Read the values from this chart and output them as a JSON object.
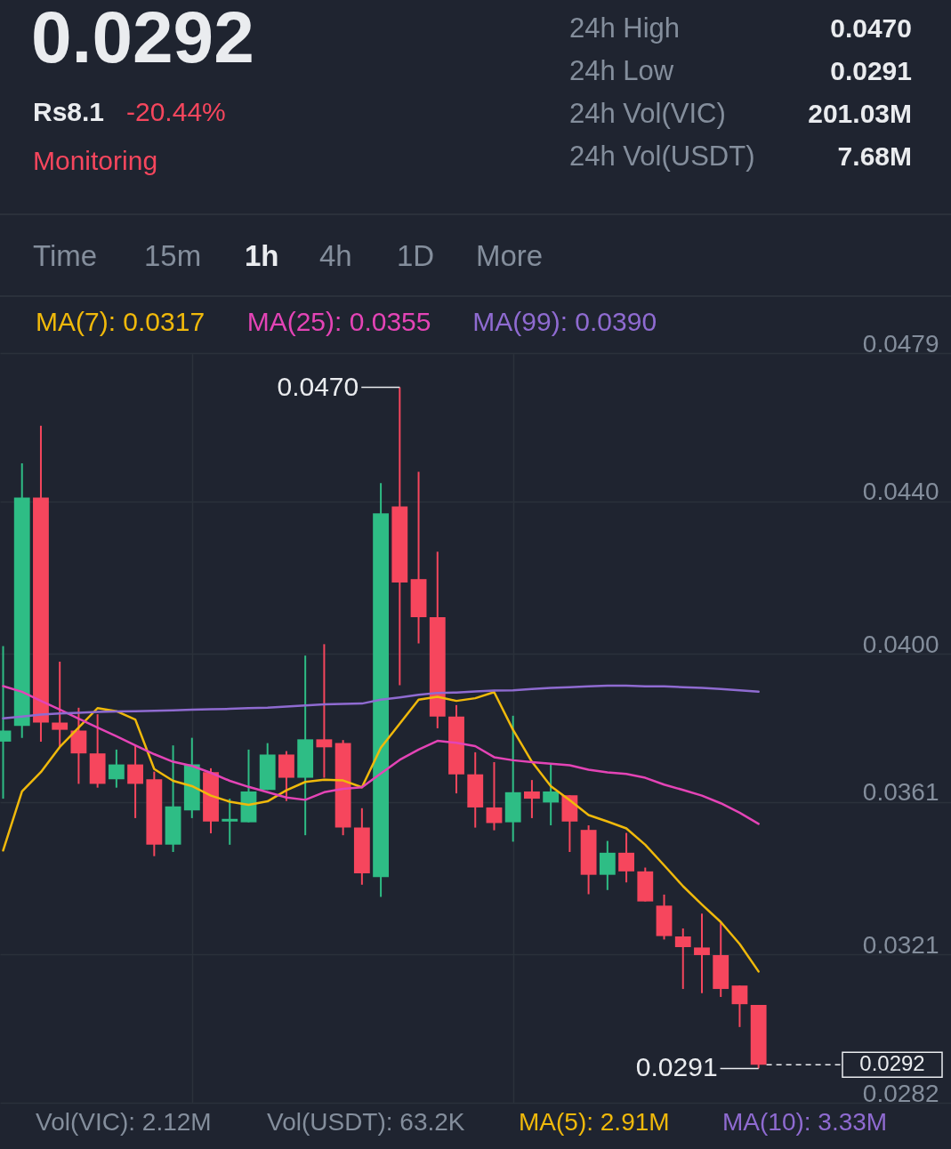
{
  "chart_data": {
    "type": "candlestick",
    "title": "0.0292",
    "categories": [
      null,
      null,
      null,
      null,
      null,
      null,
      null,
      null,
      null,
      null,
      null,
      null,
      null,
      null,
      null,
      null,
      null,
      null,
      null,
      null,
      null,
      null,
      null,
      null,
      null,
      null,
      null,
      null,
      null,
      null,
      null,
      null,
      null,
      null,
      null,
      null,
      null,
      null,
      null,
      null,
      null
    ],
    "ohlc": [
      [
        0.03769,
        0.0402,
        0.03619,
        0.03798
      ],
      [
        0.0381,
        0.045,
        0.03779,
        0.0441
      ],
      [
        0.0441,
        0.04599,
        0.03769,
        0.03819
      ],
      [
        0.03819,
        0.03979,
        0.03755,
        0.038
      ],
      [
        0.03798,
        0.03858,
        0.03658,
        0.03738
      ],
      [
        0.03738,
        0.03841,
        0.03648,
        0.03658
      ],
      [
        0.0367,
        0.03748,
        0.03648,
        0.03709
      ],
      [
        0.03709,
        0.03759,
        0.03568,
        0.03658
      ],
      [
        0.0367,
        0.0369,
        0.03468,
        0.03498
      ],
      [
        0.03498,
        0.03759,
        0.03479,
        0.03599
      ],
      [
        0.03588,
        0.03779,
        0.03568,
        0.03709
      ],
      [
        0.03689,
        0.03699,
        0.03528,
        0.03559
      ],
      [
        0.03559,
        0.03619,
        0.03498,
        0.03566
      ],
      [
        0.03557,
        0.03748,
        0.03557,
        0.03638
      ],
      [
        0.03642,
        0.03765,
        0.03642,
        0.03735
      ],
      [
        0.03735,
        0.03744,
        0.03613,
        0.03674
      ],
      [
        0.03674,
        0.03995,
        0.03523,
        0.03775
      ],
      [
        0.03775,
        0.04025,
        0.03674,
        0.03754
      ],
      [
        0.03765,
        0.03773,
        0.03523,
        0.03543
      ],
      [
        0.03543,
        0.03594,
        0.03393,
        0.03423
      ],
      [
        0.03413,
        0.04448,
        0.03361,
        0.04369
      ],
      [
        0.04387,
        0.047,
        0.03917,
        0.04187
      ],
      [
        0.04196,
        0.04478,
        0.04027,
        0.04096
      ],
      [
        0.04096,
        0.04268,
        0.03804,
        0.03835
      ],
      [
        0.03835,
        0.03865,
        0.03633,
        0.03683
      ],
      [
        0.03683,
        0.03741,
        0.03543,
        0.03596
      ],
      [
        0.03596,
        0.03715,
        0.03536,
        0.03555
      ],
      [
        0.03557,
        0.03837,
        0.03506,
        0.03636
      ],
      [
        0.03638,
        0.03668,
        0.03568,
        0.03619
      ],
      [
        0.03609,
        0.0371,
        0.03549,
        0.03638
      ],
      [
        0.03628,
        0.03628,
        0.03479,
        0.03559
      ],
      [
        0.03537,
        0.03549,
        0.03368,
        0.03419
      ],
      [
        0.03419,
        0.03508,
        0.03379,
        0.03477
      ],
      [
        0.03477,
        0.03529,
        0.03399,
        0.03428
      ],
      [
        0.03428,
        0.03438,
        0.03349,
        0.03349
      ],
      [
        0.03338,
        0.03367,
        0.03249,
        0.03258
      ],
      [
        0.03257,
        0.03278,
        0.03119,
        0.03229
      ],
      [
        0.03228,
        0.03317,
        0.03108,
        0.03208
      ],
      [
        0.03208,
        0.03295,
        0.03098,
        0.03119
      ],
      [
        0.03128,
        0.03128,
        0.03019,
        0.03079
      ],
      [
        0.03077,
        0.03077,
        0.0291,
        0.0292
      ]
    ],
    "colors": [
      "#2ebd85",
      "#2ebd85",
      "#f6465d",
      "#f6465d",
      "#f6465d",
      "#f6465d",
      "#2ebd85",
      "#f6465d",
      "#f6465d",
      "#2ebd85",
      "#2ebd85",
      "#f6465d",
      "#2ebd85",
      "#2ebd85",
      "#2ebd85",
      "#f6465d",
      "#2ebd85",
      "#f6465d",
      "#f6465d",
      "#f6465d",
      "#2ebd85",
      "#f6465d",
      "#f6465d",
      "#f6465d",
      "#f6465d",
      "#f6465d",
      "#f6465d",
      "#2ebd85",
      "#f6465d",
      "#2ebd85",
      "#f6465d",
      "#f6465d",
      "#2ebd85",
      "#f6465d",
      "#f6465d",
      "#f6465d",
      "#f6465d",
      "#f6465d",
      "#f6465d",
      "#f6465d",
      "#f6465d"
    ],
    "series": [
      {
        "type": "line",
        "name": "MA(7): 0.0317",
        "color": "#f0b90b",
        "values": [
          0.03483,
          0.03638,
          0.03689,
          0.03755,
          0.03806,
          0.03857,
          0.03849,
          0.03827,
          0.03697,
          0.03666,
          0.03652,
          0.03627,
          0.03611,
          0.03603,
          0.03612,
          0.03641,
          0.03663,
          0.03669,
          0.03667,
          0.03649,
          0.03753,
          0.03816,
          0.03879,
          0.03887,
          0.03876,
          0.03883,
          0.03899,
          0.038,
          0.03716,
          0.03652,
          0.03615,
          0.03576,
          0.03559,
          0.03541,
          0.03498,
          0.03444,
          0.03389,
          0.03341,
          0.03295,
          0.03237,
          0.03165
        ]
      },
      {
        "type": "line",
        "name": "MA(25): 0.0355",
        "color": "#e444b6",
        "values": [
          0.03915,
          0.039,
          0.03876,
          0.03853,
          0.03829,
          0.03806,
          0.03783,
          0.03759,
          0.03736,
          0.03716,
          0.03705,
          0.03687,
          0.03666,
          0.0365,
          0.03636,
          0.03622,
          0.03616,
          0.03636,
          0.03645,
          0.03649,
          0.03685,
          0.03721,
          0.03748,
          0.03771,
          0.03766,
          0.03757,
          0.03728,
          0.0372,
          0.03715,
          0.03711,
          0.03707,
          0.03695,
          0.03688,
          0.03684,
          0.03674,
          0.03656,
          0.03642,
          0.03627,
          0.03607,
          0.03582,
          0.03553
        ]
      },
      {
        "type": "line",
        "name": "MA(99): 0.0390",
        "color": "#8f6bd1",
        "values": [
          0.0383,
          0.03835,
          0.0384,
          0.03843,
          0.03845,
          0.03847,
          0.03848,
          0.03849,
          0.0385,
          0.03851,
          0.03853,
          0.03854,
          0.03855,
          0.03857,
          0.03858,
          0.03861,
          0.03864,
          0.03867,
          0.03868,
          0.03869,
          0.03879,
          0.03885,
          0.03892,
          0.03897,
          0.03898,
          0.03901,
          0.03903,
          0.03904,
          0.03907,
          0.0391,
          0.03912,
          0.03914,
          0.03916,
          0.03916,
          0.03914,
          0.03914,
          0.03912,
          0.0391,
          0.03907,
          0.03904,
          0.039
        ]
      }
    ],
    "ylim": [
      0.0282,
      0.0479
    ],
    "yticks": [
      0.0479,
      {
        "value": 0.044,
        "label": "0.0440"
      },
      {
        "value": 0.04,
        "label": "0.0400"
      },
      0.0361,
      0.0321,
      0.0282
    ],
    "grid": true,
    "tick_labels": "y",
    "legend": "top",
    "ref_lines": [
      {
        "axis": "y",
        "value": 0.0292,
        "label": "0.0292",
        "line_style": "dashed"
      }
    ],
    "annotations": [
      "0.0470",
      "0.0291",
      "Rs8.1",
      "-20.44%",
      "Monitoring",
      "24h High",
      "0.0470",
      "24h Low",
      "0.0291",
      "24h Vol(VIC)",
      "201.03M",
      "24h Vol(USDT)",
      "7.68M",
      "Time",
      "15m",
      "1h",
      "4h",
      "1D",
      "More",
      "Vol(VIC): 2.12M",
      "Vol(USDT): 63.2K",
      "MA(5): 2.91M",
      "MA(10): 3.33M"
    ]
  }
}
